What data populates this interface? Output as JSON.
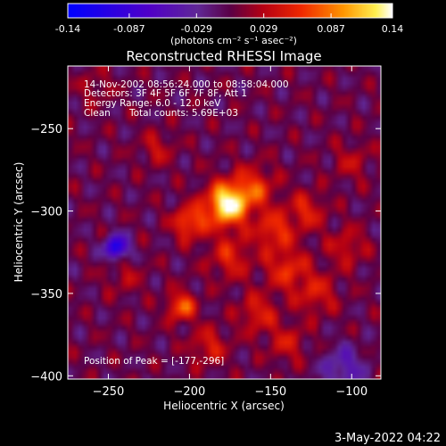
{
  "colorbar": {
    "tick_labels": [
      "-0.14",
      "-0.087",
      "-0.029",
      "0.029",
      "0.087",
      "0.14"
    ],
    "tick_values": [
      -0.14,
      -0.087,
      -0.029,
      0.029,
      0.087,
      0.14
    ],
    "range": [
      -0.14,
      0.14
    ],
    "unit_label": "(photons cm⁻² s⁻¹ asec⁻²)"
  },
  "chart_data": {
    "type": "heatmap",
    "title": "Reconstructed RHESSI Image",
    "xlabel": "Heliocentric X (arcsec)",
    "ylabel": "Heliocentric Y (arcsec)",
    "xlim": [
      -275,
      -82
    ],
    "ylim": [
      -402,
      -212
    ],
    "x_ticks": [
      -250,
      -200,
      -150,
      -100
    ],
    "x_tick_labels": [
      "−250",
      "−200",
      "−150",
      "−100"
    ],
    "y_ticks": [
      -400,
      -350,
      -300,
      -250
    ],
    "y_tick_labels": [
      "−400",
      "−350",
      "−300",
      "−250"
    ],
    "peak": {
      "x": -177,
      "y": -296
    },
    "sources": [
      {
        "x": -177,
        "y": -296,
        "amp": 0.14,
        "sigma": 9
      },
      {
        "x": -160,
        "y": -286,
        "amp": 0.06,
        "sigma": 9
      },
      {
        "x": -200,
        "y": -307,
        "amp": 0.075,
        "sigma": 7
      },
      {
        "x": -148,
        "y": -312,
        "amp": 0.06,
        "sigma": 8
      },
      {
        "x": -128,
        "y": -300,
        "amp": 0.05,
        "sigma": 8
      },
      {
        "x": -140,
        "y": -335,
        "amp": 0.055,
        "sigma": 9
      },
      {
        "x": -175,
        "y": -328,
        "amp": 0.05,
        "sigma": 9
      },
      {
        "x": -205,
        "y": -358,
        "amp": 0.08,
        "sigma": 6
      },
      {
        "x": -158,
        "y": -362,
        "amp": 0.05,
        "sigma": 8
      },
      {
        "x": -122,
        "y": -350,
        "amp": 0.045,
        "sigma": 9
      },
      {
        "x": -103,
        "y": -322,
        "amp": 0.04,
        "sigma": 8
      },
      {
        "x": -188,
        "y": -382,
        "amp": 0.045,
        "sigma": 8
      },
      {
        "x": -140,
        "y": -380,
        "amp": 0.04,
        "sigma": 8
      },
      {
        "x": -220,
        "y": -262,
        "amp": 0.035,
        "sigma": 7
      },
      {
        "x": -240,
        "y": -340,
        "amp": 0.025,
        "sigma": 8
      },
      {
        "x": -100,
        "y": -270,
        "amp": 0.03,
        "sigma": 8
      },
      {
        "x": -258,
        "y": -225,
        "amp": 0.025,
        "sigma": 7
      },
      {
        "x": -245,
        "y": -322,
        "amp": -0.12,
        "sigma": 5
      },
      {
        "x": -105,
        "y": -395,
        "amp": -0.05,
        "sigma": 9
      }
    ]
  },
  "info": {
    "time_range": "14-Nov-2002 08:56:24.000 to 08:58:04.000",
    "detectors": "Detectors: 3F 4F 5F 6F 7F 8F, Att 1",
    "energy": "Energy Range: 6.0 - 12.0 keV",
    "method": "Clean",
    "counts": "Total counts: 5.69E+03",
    "peak_text": "Position of Peak = [-177,-296]"
  },
  "footer": {
    "date": "3-May-2022 04:22"
  }
}
